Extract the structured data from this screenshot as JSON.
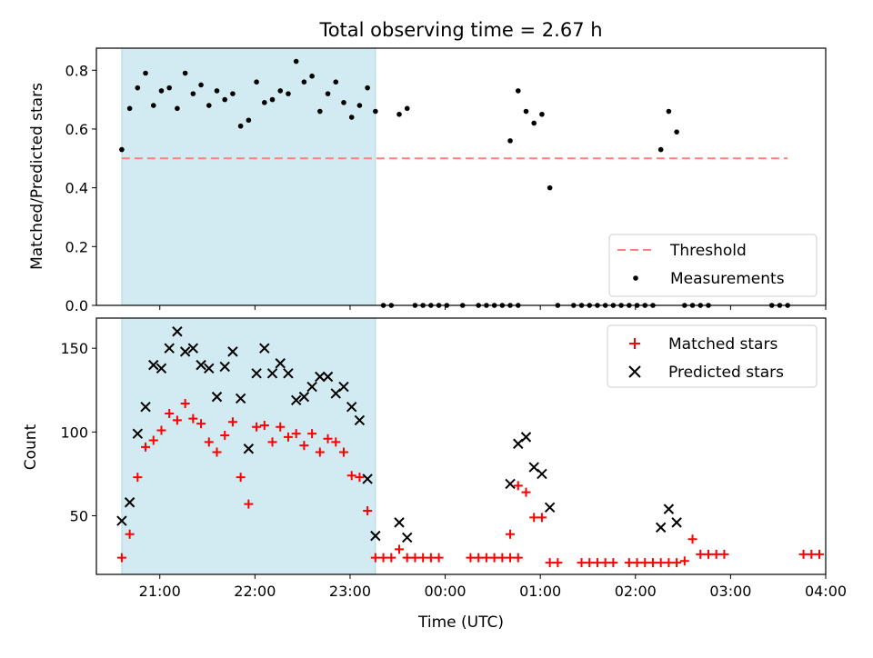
{
  "chart_data": [
    {
      "type": "scatter",
      "title": "Total observing time = 2.67 h",
      "ylabel": "Matched/Predicted stars",
      "xlabel": "",
      "ylim": [
        0,
        0.875
      ],
      "yticks": [
        "0.0",
        "0.2",
        "0.4",
        "0.6",
        "0.8"
      ],
      "yticks_values": [
        0,
        0.2,
        0.4,
        0.6,
        0.8
      ],
      "shaded_region": {
        "start": "20:36",
        "end": "23:16",
        "color": "#add8e6"
      },
      "threshold": {
        "name": "Threshold",
        "value": 0.5,
        "x_range": [
          "20:36",
          "03:36"
        ],
        "color": "#ff8080"
      },
      "legend": {
        "placement": "lower-right",
        "entries": [
          "Threshold",
          "Measurements"
        ]
      },
      "series": [
        {
          "name": "Measurements",
          "marker": "dot",
          "color": "#000000",
          "points": [
            [
              "20:36",
              0.53
            ],
            [
              "20:41",
              0.67
            ],
            [
              "20:46",
              0.74
            ],
            [
              "20:51",
              0.79
            ],
            [
              "20:56",
              0.68
            ],
            [
              "21:01",
              0.73
            ],
            [
              "21:06",
              0.74
            ],
            [
              "21:11",
              0.67
            ],
            [
              "21:16",
              0.79
            ],
            [
              "21:21",
              0.72
            ],
            [
              "21:26",
              0.75
            ],
            [
              "21:31",
              0.68
            ],
            [
              "21:36",
              0.73
            ],
            [
              "21:41",
              0.7
            ],
            [
              "21:46",
              0.72
            ],
            [
              "21:51",
              0.61
            ],
            [
              "21:56",
              0.63
            ],
            [
              "22:01",
              0.76
            ],
            [
              "22:06",
              0.69
            ],
            [
              "22:11",
              0.7
            ],
            [
              "22:16",
              0.73
            ],
            [
              "22:21",
              0.72
            ],
            [
              "22:26",
              0.83
            ],
            [
              "22:31",
              0.76
            ],
            [
              "22:36",
              0.78
            ],
            [
              "22:41",
              0.66
            ],
            [
              "22:46",
              0.72
            ],
            [
              "22:51",
              0.76
            ],
            [
              "22:56",
              0.69
            ],
            [
              "23:01",
              0.64
            ],
            [
              "23:06",
              0.68
            ],
            [
              "23:11",
              0.74
            ],
            [
              "23:16",
              0.66
            ],
            [
              "23:21",
              0
            ],
            [
              "23:26",
              0
            ],
            [
              "23:31",
              0.65
            ],
            [
              "23:36",
              0.67
            ],
            [
              "23:41",
              0
            ],
            [
              "23:46",
              0
            ],
            [
              "23:51",
              0
            ],
            [
              "23:56",
              0
            ],
            [
              "00:01",
              0
            ],
            [
              "00:11",
              0
            ],
            [
              "00:21",
              0
            ],
            [
              "00:26",
              0
            ],
            [
              "00:31",
              0
            ],
            [
              "00:36",
              0
            ],
            [
              "00:41",
              0
            ],
            [
              "00:46",
              0
            ],
            [
              "00:41",
              0.56
            ],
            [
              "00:46",
              0.73
            ],
            [
              "00:51",
              0.66
            ],
            [
              "00:56",
              0.62
            ],
            [
              "01:01",
              0.65
            ],
            [
              "01:06",
              0.4
            ],
            [
              "01:11",
              0
            ],
            [
              "01:21",
              0
            ],
            [
              "01:26",
              0
            ],
            [
              "01:31",
              0
            ],
            [
              "01:36",
              0
            ],
            [
              "01:41",
              0
            ],
            [
              "01:46",
              0
            ],
            [
              "01:51",
              0
            ],
            [
              "01:56",
              0
            ],
            [
              "02:01",
              0
            ],
            [
              "02:06",
              0
            ],
            [
              "02:11",
              0
            ],
            [
              "02:16",
              0.53
            ],
            [
              "02:21",
              0.66
            ],
            [
              "02:26",
              0.59
            ],
            [
              "02:31",
              0
            ],
            [
              "02:36",
              0
            ],
            [
              "02:41",
              0
            ],
            [
              "02:46",
              0
            ],
            [
              "03:26",
              0
            ],
            [
              "03:31",
              0
            ],
            [
              "03:36",
              0
            ]
          ]
        }
      ]
    },
    {
      "type": "scatter",
      "title": "",
      "ylabel": "Count",
      "xlabel": "Time (UTC)",
      "ylim": [
        15,
        168
      ],
      "yticks": [
        "50",
        "100",
        "150"
      ],
      "yticks_values": [
        50,
        100,
        150
      ],
      "xlim": [
        "20:20",
        "04:00"
      ],
      "xticks": [
        "21:00",
        "22:00",
        "23:00",
        "00:00",
        "01:00",
        "02:00",
        "03:00",
        "04:00"
      ],
      "shaded_region": {
        "start": "20:36",
        "end": "23:16",
        "color": "#add8e6"
      },
      "legend": {
        "placement": "top-right",
        "entries": [
          "Matched stars",
          "Predicted stars"
        ]
      },
      "series": [
        {
          "name": "Matched stars",
          "marker": "plus",
          "color": "#ff0000",
          "points": [
            [
              "20:36",
              25
            ],
            [
              "20:41",
              39
            ],
            [
              "20:46",
              73
            ],
            [
              "20:51",
              91
            ],
            [
              "20:56",
              95
            ],
            [
              "21:01",
              101
            ],
            [
              "21:06",
              111
            ],
            [
              "21:11",
              107
            ],
            [
              "21:16",
              117
            ],
            [
              "21:21",
              108
            ],
            [
              "21:26",
              105
            ],
            [
              "21:31",
              94
            ],
            [
              "21:36",
              88
            ],
            [
              "21:41",
              98
            ],
            [
              "21:46",
              106
            ],
            [
              "21:51",
              73
            ],
            [
              "21:56",
              57
            ],
            [
              "22:01",
              103
            ],
            [
              "22:06",
              104
            ],
            [
              "22:11",
              94
            ],
            [
              "22:16",
              103
            ],
            [
              "22:21",
              97
            ],
            [
              "22:26",
              99
            ],
            [
              "22:31",
              92
            ],
            [
              "22:36",
              99
            ],
            [
              "22:41",
              88
            ],
            [
              "22:46",
              96
            ],
            [
              "22:51",
              94
            ],
            [
              "22:56",
              88
            ],
            [
              "23:01",
              74
            ],
            [
              "23:06",
              73
            ],
            [
              "23:11",
              53
            ],
            [
              "23:16",
              25
            ],
            [
              "23:21",
              25
            ],
            [
              "23:26",
              25
            ],
            [
              "23:31",
              30
            ],
            [
              "23:36",
              25
            ],
            [
              "23:41",
              25
            ],
            [
              "23:46",
              25
            ],
            [
              "23:51",
              25
            ],
            [
              "23:56",
              25
            ],
            [
              "00:16",
              25
            ],
            [
              "00:21",
              25
            ],
            [
              "00:26",
              25
            ],
            [
              "00:31",
              25
            ],
            [
              "00:36",
              25
            ],
            [
              "00:41",
              25
            ],
            [
              "00:46",
              25
            ],
            [
              "00:41",
              39
            ],
            [
              "00:46",
              68
            ],
            [
              "00:51",
              64
            ],
            [
              "00:56",
              49
            ],
            [
              "01:01",
              49
            ],
            [
              "01:06",
              22
            ],
            [
              "01:11",
              22
            ],
            [
              "01:26",
              22
            ],
            [
              "01:31",
              22
            ],
            [
              "01:36",
              22
            ],
            [
              "01:41",
              22
            ],
            [
              "01:46",
              22
            ],
            [
              "01:56",
              22
            ],
            [
              "02:01",
              22
            ],
            [
              "02:06",
              22
            ],
            [
              "02:11",
              22
            ],
            [
              "02:16",
              22
            ],
            [
              "02:21",
              22
            ],
            [
              "02:26",
              22
            ],
            [
              "02:31",
              23
            ],
            [
              "02:36",
              36
            ],
            [
              "02:41",
              27
            ],
            [
              "02:46",
              27
            ],
            [
              "02:51",
              27
            ],
            [
              "02:56",
              27
            ],
            [
              "03:46",
              27
            ],
            [
              "03:51",
              27
            ],
            [
              "03:56",
              27
            ]
          ]
        },
        {
          "name": "Predicted stars",
          "marker": "x",
          "color": "#000000",
          "points": [
            [
              "20:36",
              47
            ],
            [
              "20:41",
              58
            ],
            [
              "20:46",
              99
            ],
            [
              "20:51",
              115
            ],
            [
              "20:56",
              140
            ],
            [
              "21:01",
              138
            ],
            [
              "21:06",
              150
            ],
            [
              "21:11",
              160
            ],
            [
              "21:16",
              148
            ],
            [
              "21:21",
              150
            ],
            [
              "21:26",
              140
            ],
            [
              "21:31",
              138
            ],
            [
              "21:36",
              121
            ],
            [
              "21:41",
              139
            ],
            [
              "21:46",
              148
            ],
            [
              "21:51",
              120
            ],
            [
              "21:56",
              90
            ],
            [
              "22:01",
              135
            ],
            [
              "22:06",
              150
            ],
            [
              "22:11",
              135
            ],
            [
              "22:16",
              141
            ],
            [
              "22:21",
              135
            ],
            [
              "22:26",
              119
            ],
            [
              "22:31",
              121
            ],
            [
              "22:36",
              127
            ],
            [
              "22:41",
              133
            ],
            [
              "22:46",
              133
            ],
            [
              "22:51",
              123
            ],
            [
              "22:56",
              127
            ],
            [
              "23:01",
              115
            ],
            [
              "23:06",
              107
            ],
            [
              "23:11",
              72
            ],
            [
              "23:16",
              38
            ],
            [
              "23:31",
              46
            ],
            [
              "23:36",
              37
            ],
            [
              "00:41",
              69
            ],
            [
              "00:46",
              93
            ],
            [
              "00:51",
              97
            ],
            [
              "00:56",
              79
            ],
            [
              "01:01",
              75
            ],
            [
              "01:06",
              55
            ],
            [
              "02:16",
              43
            ],
            [
              "02:21",
              54
            ],
            [
              "02:26",
              46
            ]
          ]
        }
      ]
    }
  ]
}
